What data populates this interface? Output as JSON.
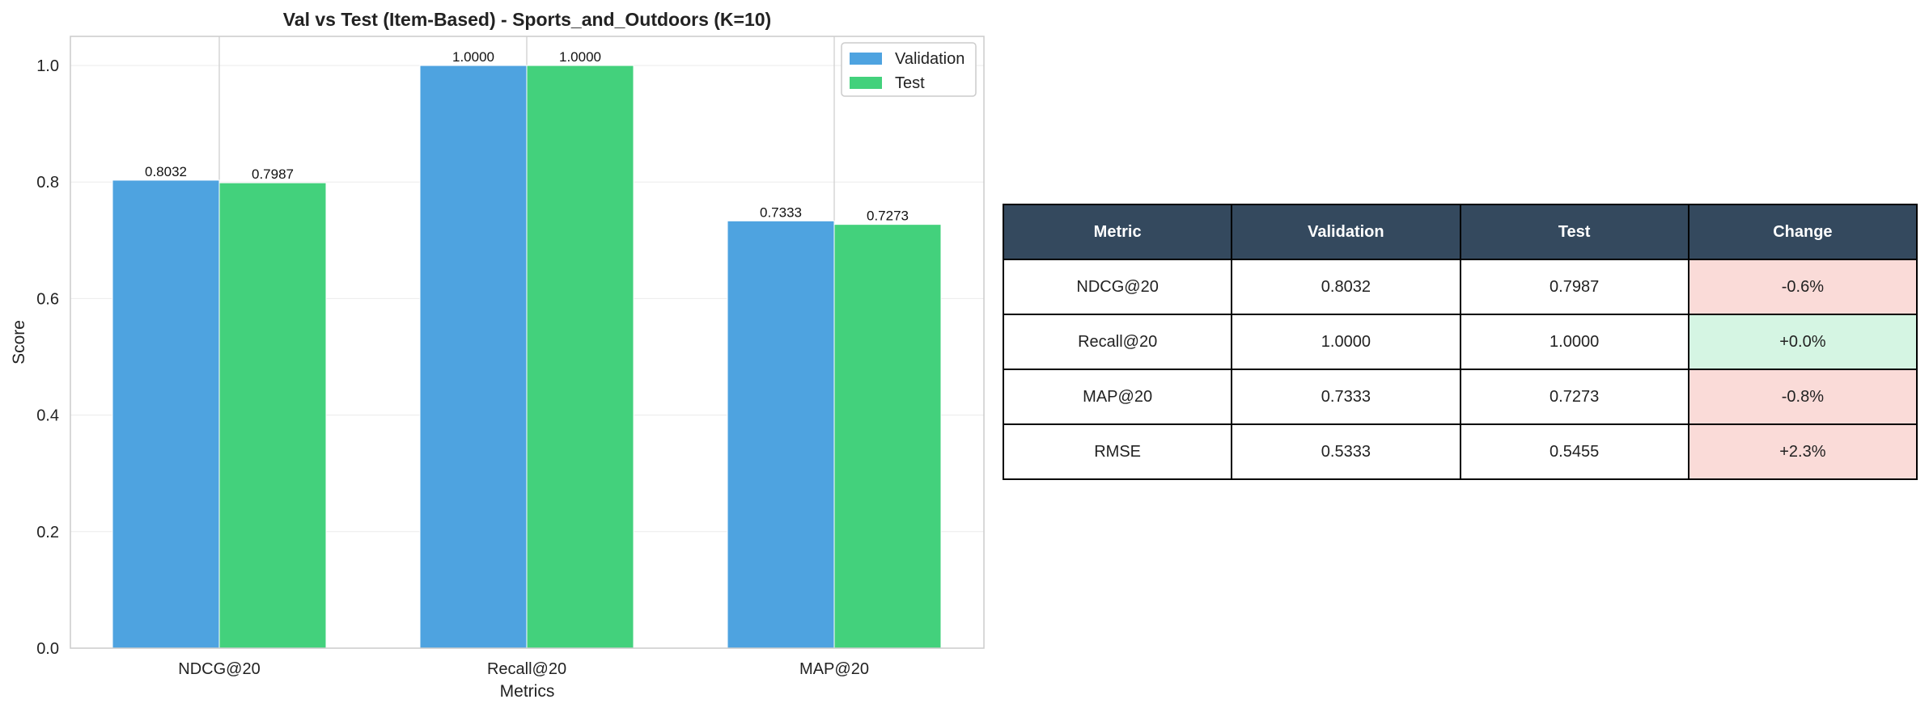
{
  "chart_data": {
    "type": "bar",
    "title": "Val vs Test (Item-Based) - Sports_and_Outdoors (K=10)",
    "xlabel": "Metrics",
    "ylabel": "Score",
    "categories": [
      "NDCG@20",
      "Recall@20",
      "MAP@20"
    ],
    "series": [
      {
        "name": "Validation",
        "values": [
          0.8032,
          1.0,
          0.7333
        ],
        "labels": [
          "0.8032",
          "1.0000",
          "0.7333"
        ],
        "color": "#4ea3e0"
      },
      {
        "name": "Test",
        "values": [
          0.7987,
          1.0,
          0.7273
        ],
        "labels": [
          "0.7987",
          "1.0000",
          "0.7273"
        ],
        "color": "#43d17c"
      }
    ],
    "ylim": [
      0,
      1.05
    ],
    "yticks": [
      "0.0",
      "0.2",
      "0.4",
      "0.6",
      "0.8",
      "1.0"
    ],
    "legend_position": "top-right",
    "grid": true
  },
  "table": {
    "headers": [
      "Metric",
      "Validation",
      "Test",
      "Change"
    ],
    "rows": [
      {
        "cells": [
          "NDCG@20",
          "0.8032",
          "0.7987",
          "-0.6%"
        ],
        "change_status": "negative"
      },
      {
        "cells": [
          "Recall@20",
          "1.0000",
          "1.0000",
          "+0.0%"
        ],
        "change_status": "positive"
      },
      {
        "cells": [
          "MAP@20",
          "0.7333",
          "0.7273",
          "-0.8%"
        ],
        "change_status": "negative"
      },
      {
        "cells": [
          "RMSE",
          "0.5333",
          "0.5455",
          "+2.3%"
        ],
        "change_status": "negative"
      }
    ],
    "colors": {
      "header_bg": "#34495e",
      "negative_bg": "#fadbd8",
      "positive_bg": "#d5f5e3"
    }
  }
}
